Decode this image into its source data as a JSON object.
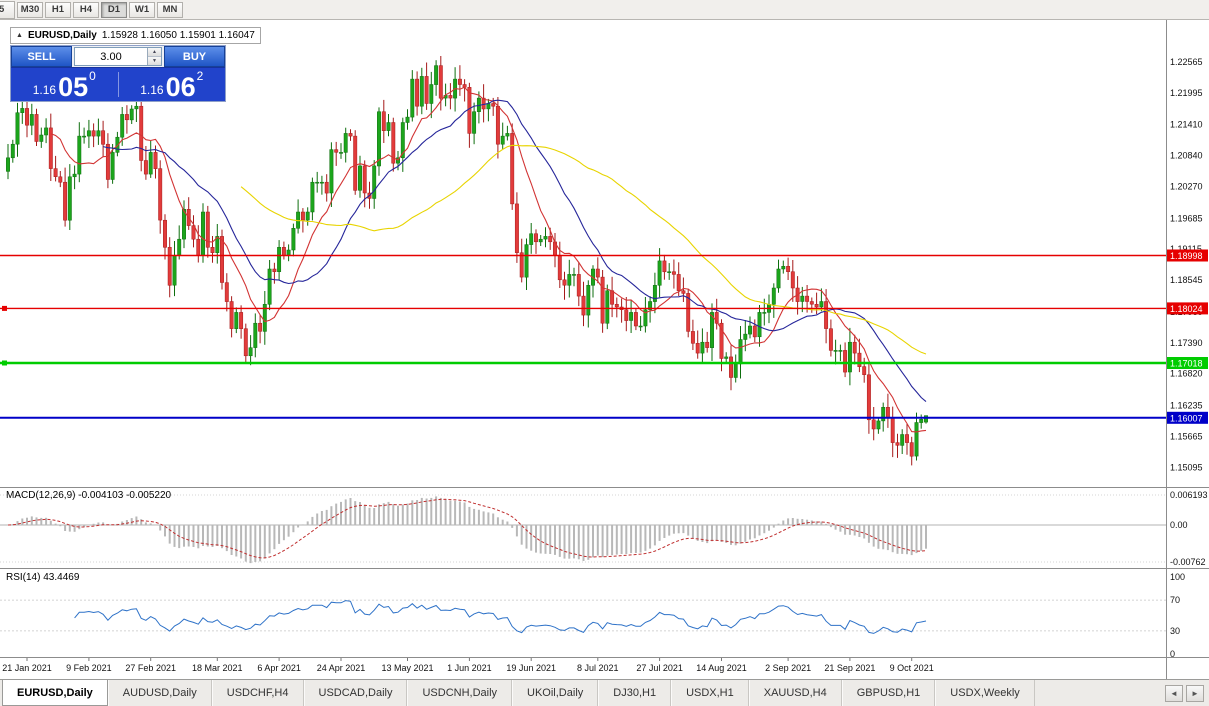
{
  "toolbar": {
    "partial_left_label": "5",
    "timeframes": [
      {
        "label": "M30",
        "active": false
      },
      {
        "label": "H1",
        "active": false
      },
      {
        "label": "H4",
        "active": false
      },
      {
        "label": "D1",
        "active": true
      },
      {
        "label": "W1",
        "active": false
      },
      {
        "label": "MN",
        "active": false
      }
    ]
  },
  "chart_header": {
    "collapse_icon": "▲",
    "title": "EURUSD,Daily",
    "ohlc": "1.15928 1.16050 1.15901 1.16047"
  },
  "trade_panel": {
    "sell_label": "SELL",
    "buy_label": "BUY",
    "volume": "3.00",
    "spin_up_icon": "▲",
    "spin_down_icon": "▼",
    "sell_price_small": "1.16",
    "sell_price_big": "05",
    "sell_price_sup": "0",
    "buy_price_small": "1.16",
    "buy_price_big": "06",
    "buy_price_sup": "2"
  },
  "price_scale": [
    "1.22565",
    "1.21995",
    "1.21410",
    "1.20840",
    "1.20270",
    "1.19685",
    "1.19115",
    "1.18545",
    "1.17960",
    "1.17390",
    "1.16820",
    "1.16235",
    "1.15665",
    "1.15095"
  ],
  "indicators": {
    "macd": {
      "label": "MACD(12,26,9)",
      "values": "-0.004103 -0.005220",
      "scale": [
        "0.006193",
        "0.00",
        "-0.00762"
      ]
    },
    "rsi": {
      "label": "RSI(14)",
      "value": "43.4469",
      "scale": [
        "100",
        "70",
        "30",
        "0"
      ],
      "levels": [
        70,
        30
      ]
    }
  },
  "chart_data": {
    "type": "candlestick",
    "symbol": "EURUSD",
    "period": "Daily",
    "ohlc_current": {
      "open": 1.15928,
      "high": 1.1605,
      "low": 1.15901,
      "close": 1.16047
    },
    "price_range": [
      1.1475,
      1.231
    ],
    "x_labels": [
      "21 Jan 2021",
      "9 Feb 2021",
      "27 Feb 2021",
      "18 Mar 2021",
      "6 Apr 2021",
      "24 Apr 2021",
      "13 May 2021",
      "1 Jun 2021",
      "19 Jun 2021",
      "8 Jul 2021",
      "27 Jul 2021",
      "14 Aug 2021",
      "2 Sep 2021",
      "21 Sep 2021",
      "9 Oct 2021"
    ],
    "closes": [
      1.208,
      1.2105,
      1.2163,
      1.2171,
      1.214,
      1.216,
      1.211,
      1.2122,
      1.2135,
      1.206,
      1.2045,
      1.2035,
      1.1965,
      1.2045,
      1.205,
      1.212,
      1.212,
      1.213,
      1.212,
      1.213,
      1.2105,
      1.204,
      1.209,
      1.2118,
      1.216,
      1.215,
      1.217,
      1.2175,
      1.2075,
      1.205,
      1.209,
      1.206,
      1.1965,
      1.1915,
      1.1845,
      1.19,
      1.193,
      1.1985,
      1.1955,
      1.193,
      1.19,
      1.198,
      1.1915,
      1.1905,
      1.1935,
      1.185,
      1.1815,
      1.1765,
      1.1795,
      1.1765,
      1.1715,
      1.173,
      1.1775,
      1.176,
      1.181,
      1.1875,
      1.187,
      1.1915,
      1.19,
      1.191,
      1.195,
      1.198,
      1.1965,
      1.198,
      1.2035,
      1.2035,
      1.2035,
      1.2015,
      1.2095,
      1.209,
      1.209,
      1.2125,
      1.212,
      1.202,
      1.2065,
      1.2015,
      1.2005,
      1.2065,
      1.2165,
      1.213,
      1.2145,
      1.207,
      1.208,
      1.2145,
      1.2155,
      1.2225,
      1.2175,
      1.223,
      1.218,
      1.2215,
      1.225,
      1.219,
      1.2195,
      1.219,
      1.2225,
      1.2215,
      1.221,
      1.2125,
      1.2165,
      1.219,
      1.217,
      1.218,
      1.2175,
      1.2105,
      1.212,
      1.2125,
      1.1995,
      1.1905,
      1.186,
      1.192,
      1.194,
      1.1925,
      1.193,
      1.1935,
      1.1925,
      1.19,
      1.1855,
      1.1845,
      1.1865,
      1.1865,
      1.1825,
      1.179,
      1.1845,
      1.1875,
      1.186,
      1.1775,
      1.1835,
      1.181,
      1.1805,
      1.18,
      1.178,
      1.1795,
      1.177,
      1.177,
      1.18,
      1.1815,
      1.1845,
      1.189,
      1.187,
      1.187,
      1.1865,
      1.1835,
      1.183,
      1.176,
      1.1738,
      1.172,
      1.174,
      1.173,
      1.1795,
      1.1775,
      1.171,
      1.1713,
      1.1675,
      1.17,
      1.1745,
      1.1755,
      1.177,
      1.175,
      1.1795,
      1.1795,
      1.181,
      1.184,
      1.1875,
      1.188,
      1.187,
      1.184,
      1.1815,
      1.1825,
      1.1815,
      1.181,
      1.1805,
      1.1815,
      1.1765,
      1.1725,
      1.1725,
      1.1725,
      1.1685,
      1.174,
      1.172,
      1.1695,
      1.168,
      1.1597,
      1.158,
      1.1595,
      1.162,
      1.16,
      1.1555,
      1.155,
      1.157,
      1.1555,
      1.153,
      1.1592,
      1.1598,
      1.1605
    ],
    "colors": {
      "up": "#1CA51C",
      "up_border": "#0E6E0E",
      "down": "#E23B3B",
      "down_border": "#A61A1A",
      "macd_bar": "#B8B8B8",
      "macd_signal": "#C03030",
      "rsi_line": "#2E72C8"
    },
    "moving_averages": [
      {
        "period": 10,
        "color": "#D23434"
      },
      {
        "period": 21,
        "color": "#26269A"
      },
      {
        "period": 50,
        "color": "#E8D400"
      }
    ],
    "hlines": [
      {
        "id": "resistance-upper",
        "price": 1.18998,
        "label": "1.18998",
        "color": "#E60000",
        "width": 1.4,
        "handle": false
      },
      {
        "id": "resistance-lower",
        "price": 1.18024,
        "label": "1.18024",
        "color": "#E60000",
        "width": 1.4,
        "handle": true
      },
      {
        "id": "support-green",
        "price": 1.17018,
        "label": "1.17018",
        "color": "#00CC00",
        "width": 2.4,
        "handle": true
      },
      {
        "id": "level-blue",
        "price": 1.16007,
        "label": "1.16007",
        "color": "#0000C8",
        "width": 2,
        "handle": false
      }
    ]
  },
  "tabs": {
    "items": [
      {
        "label": "EURUSD,Daily",
        "active": true
      },
      {
        "label": "AUDUSD,Daily",
        "active": false
      },
      {
        "label": "USDCHF,H4",
        "active": false
      },
      {
        "label": "USDCAD,Daily",
        "active": false
      },
      {
        "label": "USDCNH,Daily",
        "active": false
      },
      {
        "label": "UKOil,Daily",
        "active": false
      },
      {
        "label": "DJ30,H1",
        "active": false
      },
      {
        "label": "USDX,H1",
        "active": false
      },
      {
        "label": "XAUUSD,H4",
        "active": false
      },
      {
        "label": "GBPUSD,H1",
        "active": false
      },
      {
        "label": "USDX,Weekly",
        "active": false
      }
    ],
    "scroll_left_icon": "◄",
    "scroll_right_icon": "►"
  }
}
